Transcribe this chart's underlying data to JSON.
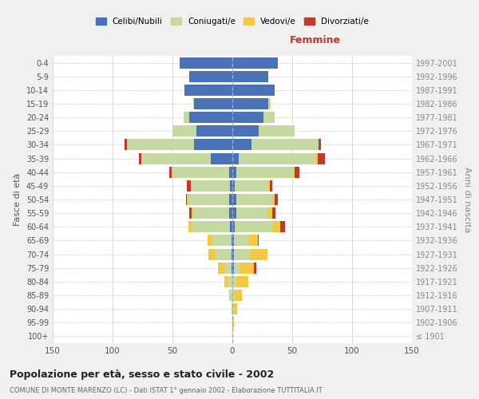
{
  "age_groups": [
    "100+",
    "95-99",
    "90-94",
    "85-89",
    "80-84",
    "75-79",
    "70-74",
    "65-69",
    "60-64",
    "55-59",
    "50-54",
    "45-49",
    "40-44",
    "35-39",
    "30-34",
    "25-29",
    "20-24",
    "15-19",
    "10-14",
    "5-9",
    "0-4"
  ],
  "birth_years": [
    "≤ 1901",
    "1902-1906",
    "1907-1911",
    "1912-1916",
    "1917-1921",
    "1922-1926",
    "1927-1931",
    "1932-1936",
    "1937-1941",
    "1942-1946",
    "1947-1951",
    "1952-1956",
    "1957-1961",
    "1962-1966",
    "1967-1971",
    "1972-1976",
    "1977-1981",
    "1982-1986",
    "1987-1991",
    "1992-1996",
    "1997-2001"
  ],
  "male_celibi": [
    0,
    0,
    0,
    0,
    0,
    1,
    1,
    1,
    2,
    3,
    3,
    2,
    3,
    18,
    32,
    30,
    36,
    32,
    40,
    36,
    44
  ],
  "male_coniugati": [
    0,
    0,
    1,
    2,
    4,
    6,
    14,
    16,
    32,
    30,
    34,
    32,
    48,
    58,
    56,
    20,
    5,
    1,
    0,
    0,
    0
  ],
  "male_vedovi": [
    0,
    0,
    0,
    1,
    3,
    5,
    5,
    4,
    3,
    1,
    1,
    1,
    0,
    0,
    0,
    0,
    0,
    0,
    0,
    0,
    0
  ],
  "male_divorziati": [
    0,
    0,
    0,
    0,
    0,
    0,
    0,
    0,
    0,
    2,
    1,
    3,
    2,
    2,
    2,
    0,
    0,
    0,
    0,
    0,
    0
  ],
  "female_nubili": [
    0,
    0,
    0,
    0,
    0,
    1,
    1,
    1,
    2,
    3,
    3,
    2,
    3,
    5,
    16,
    22,
    26,
    30,
    35,
    30,
    38
  ],
  "female_coniugate": [
    0,
    0,
    1,
    2,
    3,
    5,
    14,
    12,
    32,
    26,
    30,
    28,
    48,
    65,
    56,
    30,
    9,
    2,
    0,
    0,
    0
  ],
  "female_vedove": [
    0,
    1,
    3,
    6,
    10,
    12,
    14,
    8,
    6,
    4,
    2,
    1,
    1,
    1,
    0,
    0,
    0,
    0,
    0,
    0,
    0
  ],
  "female_divorziate": [
    0,
    0,
    0,
    0,
    0,
    2,
    0,
    1,
    4,
    3,
    3,
    2,
    4,
    6,
    2,
    0,
    0,
    0,
    0,
    0,
    0
  ],
  "color_celibi": "#4a72b8",
  "color_coniugati": "#c5d9a0",
  "color_vedovi": "#f5c842",
  "color_divorziati": "#c0392b",
  "xlim": 150,
  "title": "Popolazione per età, sesso e stato civile - 2002",
  "subtitle": "COMUNE DI MONTE MARENZO (LC) - Dati ISTAT 1° gennaio 2002 - Elaborazione TUTTITALIA.IT",
  "ylabel_left": "Fasce di età",
  "ylabel_right": "Anni di nascita",
  "label_femmine": "Femmine",
  "bg_color": "#f0f0f0",
  "plot_bg_color": "#ffffff",
  "grid_color": "#cccccc"
}
